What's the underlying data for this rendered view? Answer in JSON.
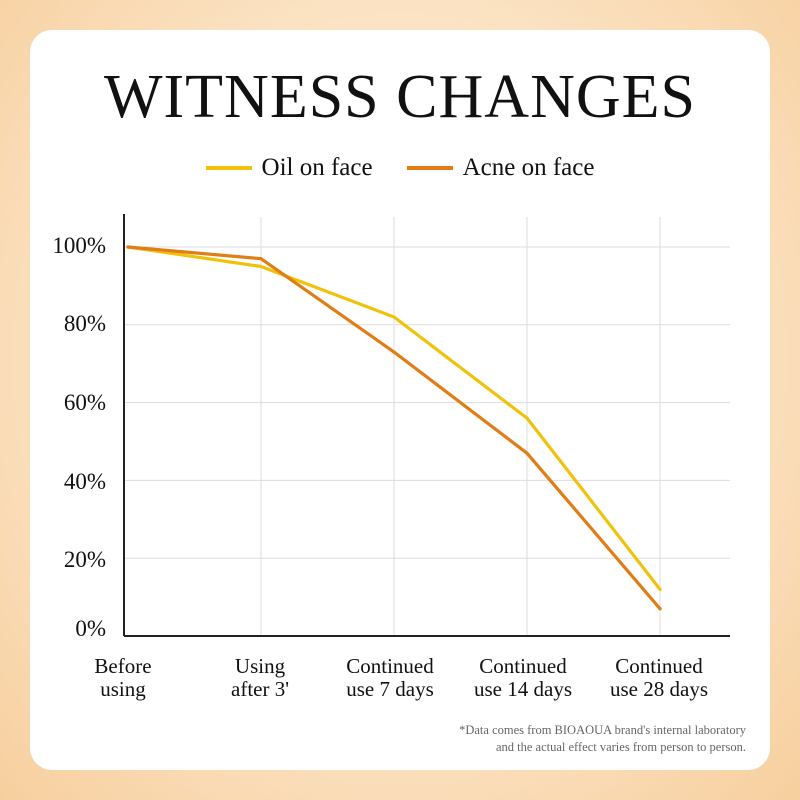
{
  "page": {
    "title": "WITNESS CHANGES",
    "footnote_line1": "*Data comes from BIOAOUA brand's internal laboratory",
    "footnote_line2": "and the actual effect varies from person to person."
  },
  "chart_data": {
    "type": "line",
    "title": "WITNESS CHANGES",
    "categories": [
      [
        "Before",
        "using"
      ],
      [
        "Using",
        "after 3'"
      ],
      [
        "Continued",
        "use 7 days"
      ],
      [
        "Continued",
        "use 14 days"
      ],
      [
        "Continued",
        "use 28 days"
      ]
    ],
    "y_ticks": [
      "0%",
      "20%",
      "40%",
      "60%",
      "80%",
      "100%"
    ],
    "ylim": [
      0,
      100
    ],
    "grid": true,
    "legend_position": "top-center",
    "series": [
      {
        "name": "Oil on face",
        "color": "#f0c20c",
        "values": [
          100,
          95,
          82,
          56,
          12
        ]
      },
      {
        "name": "Acne on face",
        "color": "#e07d15",
        "values": [
          100,
          97,
          73,
          47,
          7
        ]
      }
    ]
  }
}
